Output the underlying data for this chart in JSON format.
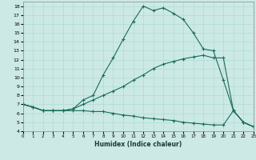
{
  "xlabel": "Humidex (Indice chaleur)",
  "background_color": "#cce9e5",
  "line_color": "#1a6b5a",
  "xlim": [
    0,
    23
  ],
  "ylim": [
    4,
    18.5
  ],
  "xticks": [
    0,
    1,
    2,
    3,
    4,
    5,
    6,
    7,
    8,
    9,
    10,
    11,
    12,
    13,
    14,
    15,
    16,
    17,
    18,
    19,
    20,
    21,
    22,
    23
  ],
  "yticks": [
    4,
    5,
    6,
    7,
    8,
    9,
    10,
    11,
    12,
    13,
    14,
    15,
    16,
    17,
    18
  ],
  "line1_x": [
    0,
    1,
    2,
    3,
    4,
    5,
    6,
    7,
    8,
    9,
    10,
    11,
    12,
    13,
    14,
    15,
    16,
    17,
    18,
    19,
    20,
    21,
    22,
    23
  ],
  "line1_y": [
    7.0,
    6.7,
    6.3,
    6.3,
    6.3,
    6.5,
    7.5,
    8.0,
    10.3,
    12.2,
    14.3,
    16.3,
    18.0,
    17.5,
    17.8,
    17.2,
    16.5,
    15.0,
    13.2,
    13.0,
    9.7,
    6.3,
    5.0,
    4.5
  ],
  "line2_x": [
    0,
    1,
    2,
    3,
    4,
    5,
    6,
    7,
    8,
    9,
    10,
    11,
    12,
    13,
    14,
    15,
    16,
    17,
    18,
    19,
    20,
    21,
    22,
    23
  ],
  "line2_y": [
    7.0,
    6.7,
    6.3,
    6.3,
    6.3,
    6.5,
    7.0,
    7.5,
    8.0,
    8.5,
    9.0,
    9.7,
    10.3,
    11.0,
    11.5,
    11.8,
    12.1,
    12.3,
    12.5,
    12.2,
    12.2,
    6.3,
    5.0,
    4.5
  ],
  "line3_x": [
    0,
    1,
    2,
    3,
    4,
    5,
    6,
    7,
    8,
    9,
    10,
    11,
    12,
    13,
    14,
    15,
    16,
    17,
    18,
    19,
    20,
    21,
    22,
    23
  ],
  "line3_y": [
    7.0,
    6.7,
    6.3,
    6.3,
    6.3,
    6.3,
    6.3,
    6.2,
    6.2,
    6.0,
    5.8,
    5.7,
    5.5,
    5.4,
    5.3,
    5.2,
    5.0,
    4.9,
    4.8,
    4.7,
    4.7,
    6.3,
    5.0,
    4.5
  ]
}
